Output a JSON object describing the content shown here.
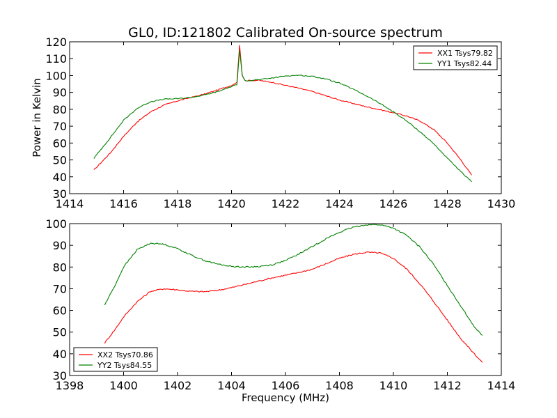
{
  "chart_data": [
    {
      "type": "line",
      "title": "GL0, ID:121802 Calibrated On-source spectrum",
      "xlabel": "",
      "ylabel": "Power in Kelvin",
      "xlim": [
        1414,
        1430
      ],
      "ylim": [
        30,
        120
      ],
      "xticks": [
        1414,
        1416,
        1418,
        1420,
        1422,
        1424,
        1426,
        1428,
        1430
      ],
      "yticks": [
        30,
        40,
        50,
        60,
        70,
        80,
        90,
        100,
        110,
        120
      ],
      "legend_position": "top-right",
      "series": [
        {
          "name": "XX1 Tsys79.82",
          "color": "#ff0000",
          "points": [
            [
              1414.9,
              44
            ],
            [
              1415.5,
              54
            ],
            [
              1416,
              64
            ],
            [
              1416.5,
              72.5
            ],
            [
              1417,
              78.5
            ],
            [
              1417.5,
              82.5
            ],
            [
              1418,
              85
            ],
            [
              1418.5,
              87
            ],
            [
              1419,
              89
            ],
            [
              1419.5,
              91.5
            ],
            [
              1420,
              94.2
            ],
            [
              1420.2,
              96
            ],
            [
              1420.3,
              118
            ],
            [
              1420.4,
              100
            ],
            [
              1420.5,
              97
            ],
            [
              1421,
              97.2
            ],
            [
              1421.5,
              96
            ],
            [
              1422,
              94.2
            ],
            [
              1422.5,
              92.5
            ],
            [
              1423,
              90.5
            ],
            [
              1423.5,
              88
            ],
            [
              1424,
              85.5
            ],
            [
              1424.5,
              83.5
            ],
            [
              1425,
              81.5
            ],
            [
              1425.5,
              79.8
            ],
            [
              1426,
              78
            ],
            [
              1426.5,
              76
            ],
            [
              1427,
              73
            ],
            [
              1427.5,
              68
            ],
            [
              1428,
              60
            ],
            [
              1428.5,
              50
            ],
            [
              1428.9,
              41
            ]
          ]
        },
        {
          "name": "YY1 Tsys82.44",
          "color": "#008000",
          "points": [
            [
              1414.9,
              51
            ],
            [
              1415.5,
              63
            ],
            [
              1416,
              73.5
            ],
            [
              1416.5,
              80.5
            ],
            [
              1417,
              84.5
            ],
            [
              1417.5,
              86
            ],
            [
              1418,
              86.3
            ],
            [
              1418.5,
              87
            ],
            [
              1419,
              88.5
            ],
            [
              1419.5,
              90.5
            ],
            [
              1420,
              93.5
            ],
            [
              1420.2,
              94.5
            ],
            [
              1420.3,
              115
            ],
            [
              1420.4,
              100
            ],
            [
              1420.5,
              97
            ],
            [
              1421,
              97.5
            ],
            [
              1421.5,
              98.5
            ],
            [
              1422,
              99.8
            ],
            [
              1422.5,
              100.2
            ],
            [
              1423,
              99.5
            ],
            [
              1423.5,
              98
            ],
            [
              1424,
              95.5
            ],
            [
              1424.5,
              92
            ],
            [
              1425,
              88
            ],
            [
              1425.5,
              83.5
            ],
            [
              1426,
              78.5
            ],
            [
              1426.5,
              73
            ],
            [
              1427,
              66.5
            ],
            [
              1427.5,
              59.5
            ],
            [
              1428,
              51
            ],
            [
              1428.5,
              43
            ],
            [
              1428.9,
              37
            ]
          ]
        }
      ]
    },
    {
      "type": "line",
      "title": "",
      "xlabel": "Frequency (MHz)",
      "ylabel": "",
      "xlim": [
        1398,
        1414
      ],
      "ylim": [
        30,
        100
      ],
      "xticks": [
        1398,
        1400,
        1402,
        1404,
        1406,
        1408,
        1410,
        1412,
        1414
      ],
      "yticks": [
        30,
        40,
        50,
        60,
        70,
        80,
        90,
        100
      ],
      "legend_position": "bottom-left",
      "series": [
        {
          "name": "XX2 Tsys70.86",
          "color": "#ff0000",
          "points": [
            [
              1399.3,
              45
            ],
            [
              1399.7,
              51.5
            ],
            [
              1400,
              57
            ],
            [
              1400.5,
              64
            ],
            [
              1401,
              68.8
            ],
            [
              1401.5,
              70
            ],
            [
              1402,
              69.5
            ],
            [
              1402.5,
              68.8
            ],
            [
              1403,
              68.6
            ],
            [
              1403.5,
              69.3
            ],
            [
              1404,
              70.5
            ],
            [
              1404.5,
              72
            ],
            [
              1405,
              73.5
            ],
            [
              1405.5,
              75
            ],
            [
              1406,
              76.2
            ],
            [
              1406.5,
              77.5
            ],
            [
              1407,
              79
            ],
            [
              1407.5,
              81.5
            ],
            [
              1408,
              84
            ],
            [
              1408.5,
              85.8
            ],
            [
              1409,
              86.8
            ],
            [
              1409.5,
              86.5
            ],
            [
              1410,
              84
            ],
            [
              1410.5,
              79
            ],
            [
              1411,
              72
            ],
            [
              1411.5,
              64
            ],
            [
              1412,
              55.5
            ],
            [
              1412.5,
              47
            ],
            [
              1413,
              40
            ],
            [
              1413.3,
              36
            ]
          ]
        },
        {
          "name": "YY2 Tsys84.55",
          "color": "#008000",
          "points": [
            [
              1399.3,
              62.5
            ],
            [
              1399.7,
              72
            ],
            [
              1400,
              80
            ],
            [
              1400.5,
              88
            ],
            [
              1401,
              91
            ],
            [
              1401.5,
              90.5
            ],
            [
              1402,
              88.5
            ],
            [
              1402.5,
              85.5
            ],
            [
              1403,
              83
            ],
            [
              1403.5,
              81.3
            ],
            [
              1404,
              80.3
            ],
            [
              1404.5,
              80
            ],
            [
              1405,
              80.2
            ],
            [
              1405.5,
              81
            ],
            [
              1406,
              83
            ],
            [
              1406.5,
              86
            ],
            [
              1407,
              89.5
            ],
            [
              1407.5,
              93
            ],
            [
              1408,
              96
            ],
            [
              1408.5,
              98.3
            ],
            [
              1409,
              99.5
            ],
            [
              1409.5,
              99.5
            ],
            [
              1410,
              98
            ],
            [
              1410.5,
              94.5
            ],
            [
              1411,
              89
            ],
            [
              1411.5,
              81
            ],
            [
              1412,
              71.5
            ],
            [
              1412.5,
              62
            ],
            [
              1413,
              52.5
            ],
            [
              1413.3,
              48.5
            ]
          ]
        }
      ]
    }
  ]
}
